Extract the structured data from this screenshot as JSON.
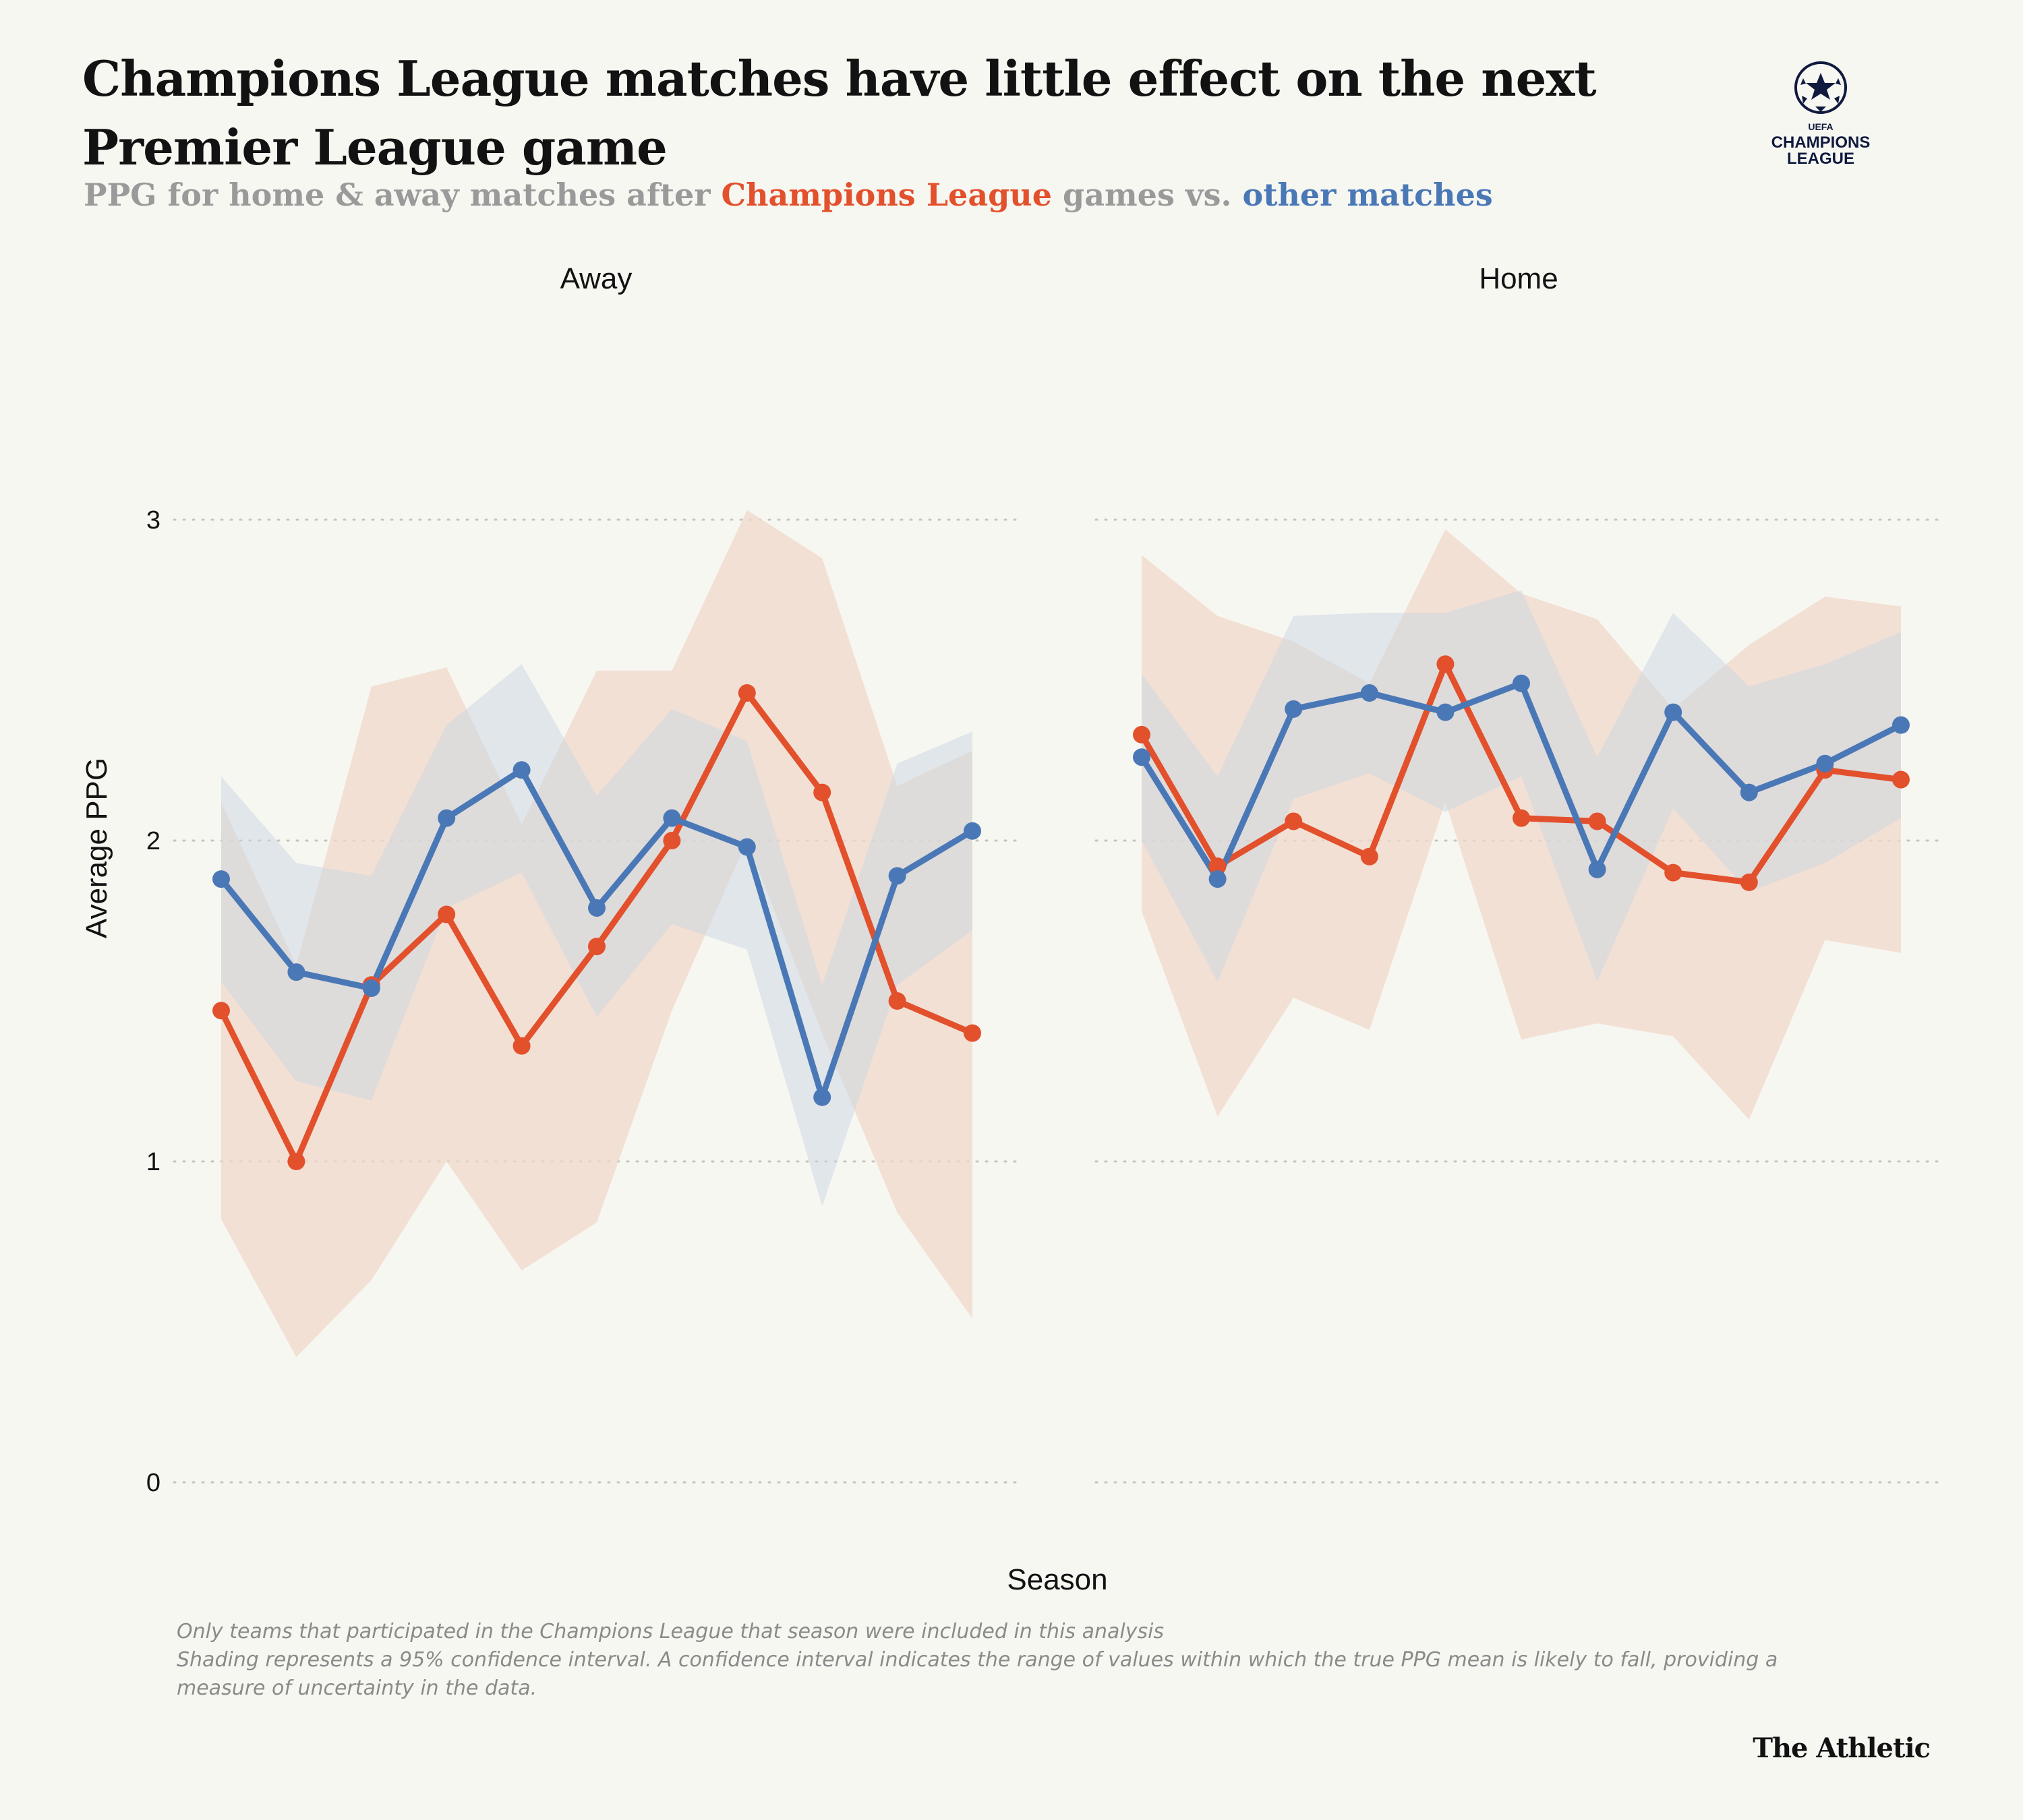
{
  "header": {
    "title": "Champions League matches have little effect on the next Premier League game",
    "subtitle_parts": {
      "prefix": "PPG for home & away matches after ",
      "cl": "Champions League",
      "middle": " games vs. ",
      "other": "other matches"
    }
  },
  "logo": {
    "icon": "champions-league-starball-icon",
    "top_text": "UEFA",
    "line1": "CHAMPIONS",
    "line2": "LEAGUE"
  },
  "footnotes": [
    "Only teams that participated in the Champions League that season were included in this analysis",
    "Shading represents a 95% confidence interval. A confidence interval indicates the range of values within which the true PPG mean is likely to fall, providing a measure of uncertainty in the data."
  ],
  "brand": "The Athletic",
  "colors": {
    "champions_league": "#e2502c",
    "other": "#4a78b6",
    "cl_band": "#f2d8ca",
    "other_band": "#c9d5e2"
  },
  "chart_data": {
    "type": "line",
    "xlabel": "Season",
    "ylabel": "Average PPG",
    "ylim": [
      0,
      3.5
    ],
    "yticks": [
      0,
      1,
      2,
      3
    ],
    "grid": "horizontal dotted",
    "panels": [
      {
        "name": "Away",
        "series": [
          {
            "key": "champions_league",
            "values": [
              1.47,
              1.0,
              1.55,
              1.77,
              1.36,
              1.67,
              2.0,
              2.46,
              2.15,
              1.5,
              1.4
            ],
            "ci_low": [
              0.82,
              0.39,
              0.63,
              1.0,
              0.66,
              0.81,
              1.47,
              2.0,
              1.4,
              0.84,
              0.51
            ],
            "ci_high": [
              2.12,
              1.61,
              2.48,
              2.54,
              2.05,
              2.53,
              2.53,
              3.03,
              2.88,
              2.17,
              2.28
            ]
          },
          {
            "key": "other",
            "values": [
              1.88,
              1.59,
              1.54,
              2.07,
              2.22,
              1.79,
              2.07,
              1.98,
              1.2,
              1.89,
              2.03
            ],
            "ci_low": [
              1.56,
              1.25,
              1.19,
              1.79,
              1.9,
              1.45,
              1.74,
              1.66,
              0.86,
              1.55,
              1.72
            ],
            "ci_high": [
              2.2,
              1.93,
              1.89,
              2.36,
              2.55,
              2.14,
              2.41,
              2.31,
              1.55,
              2.24,
              2.34
            ]
          }
        ]
      },
      {
        "name": "Home",
        "series": [
          {
            "key": "champions_league",
            "values": [
              2.33,
              1.92,
              2.06,
              1.95,
              2.55,
              2.07,
              2.06,
              1.9,
              1.87,
              2.22,
              2.19
            ],
            "ci_low": [
              1.78,
              1.14,
              1.51,
              1.41,
              2.12,
              1.38,
              1.43,
              1.39,
              1.13,
              1.69,
              1.65
            ],
            "ci_high": [
              2.89,
              2.7,
              2.62,
              2.49,
              2.97,
              2.77,
              2.69,
              2.41,
              2.61,
              2.76,
              2.73
            ]
          },
          {
            "key": "other",
            "values": [
              2.26,
              1.88,
              2.41,
              2.46,
              2.4,
              2.49,
              1.91,
              2.4,
              2.15,
              2.24,
              2.36
            ],
            "ci_low": [
              2.0,
              1.56,
              2.13,
              2.21,
              2.09,
              2.2,
              1.56,
              2.1,
              1.84,
              1.93,
              2.07
            ],
            "ci_high": [
              2.52,
              2.2,
              2.7,
              2.71,
              2.71,
              2.78,
              2.26,
              2.71,
              2.48,
              2.55,
              2.65
            ]
          }
        ]
      }
    ]
  }
}
